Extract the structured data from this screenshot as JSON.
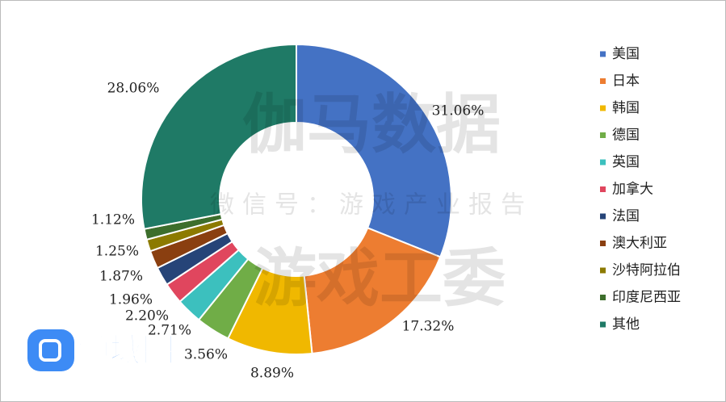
{
  "chart_data": {
    "type": "donut",
    "categories": [
      "美国",
      "日本",
      "韩国",
      "德国",
      "英国",
      "加拿大",
      "法国",
      "澳大利亚",
      "沙特阿拉伯",
      "印度尼西亚",
      "其他"
    ],
    "values": [
      31.06,
      17.32,
      8.89,
      3.56,
      2.71,
      2.2,
      1.96,
      1.87,
      1.25,
      1.12,
      28.06
    ],
    "value_labels": [
      "31.06%",
      "17.32%",
      "8.89%",
      "3.56%",
      "2.71%",
      "2.20%",
      "1.96%",
      "1.87%",
      "1.25%",
      "1.12%",
      "28.06%"
    ],
    "colors": [
      "#4472c4",
      "#ed7d31",
      "#f0b800",
      "#70ad47",
      "#3cc0be",
      "#e0465e",
      "#264478",
      "#8a3f10",
      "#8c7a00",
      "#3d6e2c",
      "#1f7a66"
    ],
    "legend": "right"
  },
  "watermarks": [
    "伽马数据",
    "微信号：游戏产业报告",
    "游戏工委"
  ],
  "logo": "领域圈"
}
